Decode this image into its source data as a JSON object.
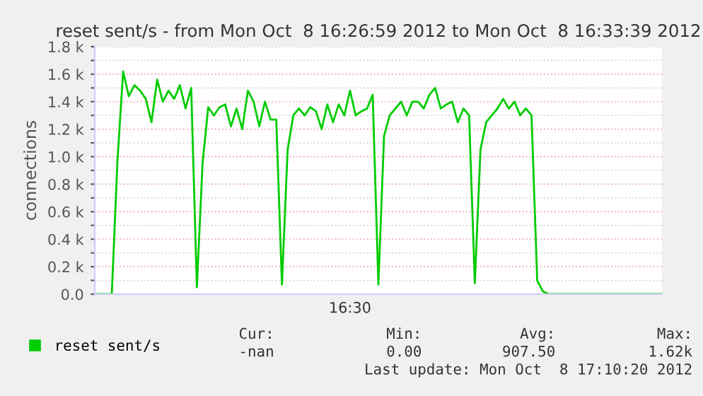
{
  "chart_data": {
    "type": "line",
    "title": "reset sent/s - from Mon Oct  8 16:26:59 2012 to Mon Oct  8 16:33:39 2012",
    "ylabel": "connections",
    "categories": [
      null,
      null,
      null,
      null,
      null,
      null,
      null,
      null,
      null,
      null,
      null,
      null,
      null,
      null,
      null,
      null,
      null,
      null,
      null,
      null,
      null,
      null,
      null,
      null,
      null,
      null,
      null,
      null,
      null,
      null,
      null,
      null,
      null,
      null,
      null,
      null,
      null,
      null,
      null,
      null,
      null,
      null,
      null,
      null,
      null,
      null,
      null,
      null,
      null,
      null,
      null,
      null,
      null,
      null,
      null,
      null,
      null,
      null,
      null,
      null,
      null,
      null,
      null,
      null,
      null,
      null,
      null,
      null,
      null,
      null,
      null,
      null,
      null,
      null,
      null,
      null,
      null,
      null,
      null,
      null,
      null,
      null,
      null,
      null,
      null,
      null,
      null,
      null,
      null,
      null,
      null,
      null,
      null,
      null,
      null,
      null,
      null,
      null,
      null,
      null,
      null
    ],
    "series": [
      {
        "name": "reset sent/s",
        "color": "#00cc00",
        "values": [
          0,
          0,
          0,
          0,
          970,
          1620,
          1440,
          1520,
          1480,
          1420,
          1250,
          1560,
          1400,
          1480,
          1420,
          1520,
          1350,
          1500,
          50,
          950,
          1360,
          1300,
          1360,
          1380,
          1220,
          1350,
          1200,
          1480,
          1400,
          1220,
          1400,
          1270,
          1270,
          70,
          1050,
          1300,
          1350,
          1300,
          1360,
          1330,
          1200,
          1380,
          1250,
          1380,
          1300,
          1480,
          1300,
          1330,
          1350,
          1450,
          70,
          1150,
          1300,
          1350,
          1400,
          1300,
          1400,
          1400,
          1350,
          1450,
          1500,
          1350,
          1380,
          1400,
          1250,
          1350,
          1300,
          80,
          1050,
          1250,
          1300,
          1350,
          1420,
          1350,
          1400,
          1300,
          1350,
          1300,
          100,
          20,
          0,
          0,
          0,
          0,
          0,
          0,
          0,
          0,
          0,
          0,
          0,
          0,
          0,
          0,
          0,
          0,
          0,
          0,
          0,
          0,
          0
        ]
      }
    ],
    "ylim": [
      0,
      1800
    ],
    "yticks": [
      {
        "value": 0,
        "label": "0.0"
      },
      {
        "value": 100,
        "label": null
      },
      {
        "value": 200,
        "label": "0.2 k"
      },
      {
        "value": 300,
        "label": null
      },
      {
        "value": 400,
        "label": "0.4 k"
      },
      {
        "value": 500,
        "label": null
      },
      {
        "value": 600,
        "label": "0.6 k"
      },
      {
        "value": 700,
        "label": null
      },
      {
        "value": 800,
        "label": "0.8 k"
      },
      {
        "value": 900,
        "label": null
      },
      {
        "value": 1000,
        "label": "1.0 k"
      },
      {
        "value": 1100,
        "label": null
      },
      {
        "value": 1200,
        "label": "1.2 k"
      },
      {
        "value": 1300,
        "label": null
      },
      {
        "value": 1400,
        "label": "1.4 k"
      },
      {
        "value": 1500,
        "label": null
      },
      {
        "value": 1600,
        "label": "1.6 k"
      },
      {
        "value": 1700,
        "label": null
      },
      {
        "value": 1800,
        "label": "1.8 k"
      }
    ],
    "grid": "y",
    "legend": "bottom",
    "line_style": "solid",
    "marker": "none",
    "annotations": [
      "16:30",
      "Cur:",
      "-nan",
      "Min:",
      "0.00",
      "Avg:",
      "907.50",
      "Max:",
      "1.62k",
      "Last update: Mon Oct  8 17:10:20 2012"
    ]
  }
}
